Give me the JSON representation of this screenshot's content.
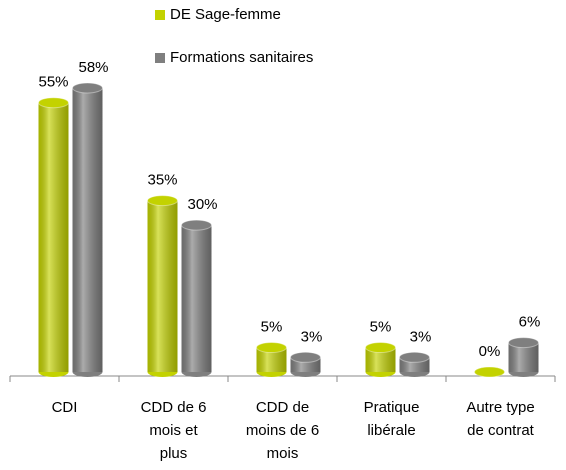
{
  "chart_data": {
    "type": "bar",
    "categories": [
      "CDI",
      "CDD de 6 mois et plus",
      "CDD de moins de 6 mois",
      "Pratique libérale",
      "Autre type de contrat"
    ],
    "series": [
      {
        "name": "DE Sage-femme",
        "color": "#c3d200",
        "values": [
          55,
          35,
          5,
          5,
          0
        ],
        "value_labels": [
          "55%",
          "35%",
          "5%",
          "5%",
          "0%"
        ]
      },
      {
        "name": "Formations sanitaires",
        "color": "#7f7f7f",
        "values": [
          58,
          30,
          3,
          3,
          6
        ],
        "value_labels": [
          "58%",
          "30%",
          "3%",
          "3%",
          "6%"
        ]
      }
    ]
  }
}
